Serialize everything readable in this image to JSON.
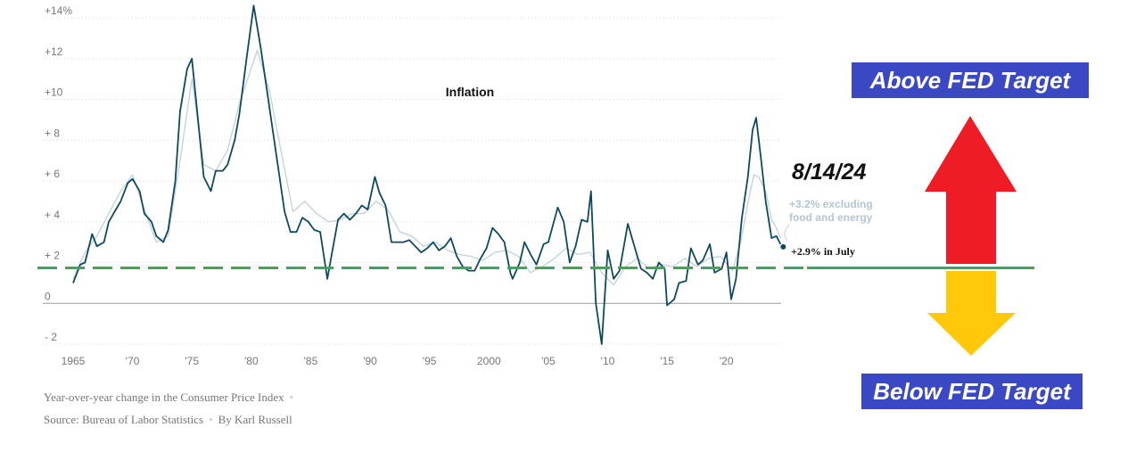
{
  "chart_data": {
    "type": "line",
    "title": "Inflation",
    "y_tick_labels": [
      "+14%",
      "+12",
      "+10",
      "+ 8",
      "+ 6",
      "+ 4",
      "+ 2",
      "0",
      "- 2"
    ],
    "y_tick_values": [
      14,
      12,
      10,
      8,
      6,
      4,
      2,
      0,
      -2
    ],
    "x_tick_labels": [
      "1965",
      "'70",
      "'75",
      "'80",
      "'85",
      "'90",
      "'95",
      "2000",
      "'05",
      "'10",
      "'15",
      "'20"
    ],
    "x_tick_values": [
      1965,
      1970,
      1975,
      1980,
      1985,
      1990,
      1995,
      2000,
      2005,
      2010,
      2015,
      2020
    ],
    "xlim": [
      1965,
      2024.6
    ],
    "ylim": [
      -2,
      14
    ],
    "grid": true,
    "series": [
      {
        "color": "#0e4a5f",
        "x": [
          1965.0,
          1965.6,
          1966.0,
          1966.6,
          1967.0,
          1967.6,
          1968.0,
          1968.6,
          1969.0,
          1969.6,
          1970.0,
          1970.6,
          1971.0,
          1971.6,
          1972.0,
          1972.6,
          1973.0,
          1973.6,
          1974.0,
          1974.6,
          1975.0,
          1975.6,
          1976.0,
          1976.6,
          1977.0,
          1977.6,
          1978.0,
          1978.6,
          1979.0,
          1979.6,
          1980.2,
          1980.8,
          1981.3,
          1981.8,
          1982.3,
          1982.8,
          1983.3,
          1983.8,
          1984.3,
          1984.8,
          1985.3,
          1985.8,
          1986.4,
          1986.8,
          1987.3,
          1987.8,
          1988.3,
          1988.8,
          1989.3,
          1989.8,
          1990.4,
          1990.8,
          1991.3,
          1991.8,
          1992.3,
          1992.8,
          1993.3,
          1993.8,
          1994.3,
          1994.8,
          1995.3,
          1995.8,
          1996.3,
          1996.8,
          1997.3,
          1997.8,
          1998.3,
          1998.8,
          1999.3,
          1999.8,
          2000.3,
          2000.8,
          2001.3,
          2001.8,
          2002.0,
          2002.6,
          2003.0,
          2003.6,
          2004.0,
          2004.6,
          2005.0,
          2005.8,
          2006.3,
          2006.8,
          2007.3,
          2007.8,
          2008.3,
          2008.6,
          2009.0,
          2009.5,
          2010.0,
          2010.5,
          2011.0,
          2011.7,
          2012.3,
          2012.8,
          2013.3,
          2013.8,
          2014.3,
          2014.8,
          2015.0,
          2015.6,
          2016.0,
          2016.6,
          2017.0,
          2017.6,
          2018.0,
          2018.6,
          2019.0,
          2019.6,
          2020.0,
          2020.4,
          2020.8,
          2021.3,
          2021.8,
          2022.2,
          2022.5,
          2022.9,
          2023.3,
          2023.8,
          2024.2,
          2024.55
        ],
        "y": [
          1.0,
          1.9,
          2.0,
          3.4,
          2.8,
          3.0,
          4.0,
          4.6,
          5.0,
          5.9,
          6.1,
          5.5,
          4.4,
          4.0,
          3.3,
          3.0,
          3.6,
          6.0,
          9.4,
          11.5,
          12.0,
          8.5,
          6.2,
          5.5,
          6.5,
          6.5,
          6.8,
          8.0,
          9.3,
          12.0,
          14.6,
          12.5,
          10.5,
          8.5,
          6.5,
          4.5,
          3.5,
          3.5,
          4.2,
          4.0,
          3.6,
          3.5,
          1.2,
          2.5,
          4.1,
          4.4,
          4.1,
          4.4,
          4.8,
          4.6,
          6.2,
          5.4,
          4.8,
          3.0,
          3.0,
          3.0,
          3.1,
          2.8,
          2.5,
          2.7,
          3.0,
          2.6,
          2.8,
          3.2,
          2.3,
          1.8,
          1.6,
          1.6,
          2.2,
          2.7,
          3.7,
          3.4,
          3.0,
          1.5,
          1.2,
          2.0,
          3.0,
          2.3,
          1.9,
          2.9,
          3.0,
          4.7,
          4.0,
          2.0,
          2.8,
          4.1,
          4.0,
          5.5,
          0.0,
          -2.0,
          2.6,
          1.2,
          1.6,
          3.9,
          2.7,
          1.7,
          1.5,
          1.2,
          2.0,
          1.7,
          -0.1,
          0.2,
          1.0,
          1.1,
          2.7,
          1.9,
          2.1,
          2.9,
          1.5,
          1.7,
          2.5,
          0.2,
          1.2,
          4.2,
          6.2,
          8.5,
          9.1,
          7.1,
          5.0,
          3.2,
          3.3,
          2.9
        ]
      },
      {
        "color": "#c5d3dd",
        "x": [
          1965.0,
          1966.0,
          1967.0,
          1968.0,
          1969.0,
          1970.0,
          1971.0,
          1972.0,
          1973.0,
          1974.0,
          1975.0,
          1976.0,
          1977.0,
          1978.0,
          1979.0,
          1980.5,
          1981.5,
          1982.5,
          1983.5,
          1984.5,
          1985.5,
          1986.5,
          1987.5,
          1988.5,
          1989.5,
          1990.5,
          1991.5,
          1992.5,
          1993.5,
          1994.5,
          1995.5,
          1996.5,
          1997.5,
          1998.5,
          1999.5,
          2000.5,
          2001.5,
          2002.5,
          2003.5,
          2004.5,
          2005.5,
          2006.5,
          2007.5,
          2008.5,
          2009.5,
          2010.5,
          2011.5,
          2012.5,
          2013.5,
          2014.5,
          2015.5,
          2016.5,
          2017.5,
          2018.5,
          2019.5,
          2020.5,
          2021.2,
          2021.8,
          2022.3,
          2022.7,
          2023.3,
          2023.8,
          2024.2,
          2024.55
        ],
        "y": [
          1.2,
          2.5,
          3.3,
          4.4,
          5.5,
          6.3,
          4.6,
          3.0,
          3.3,
          7.0,
          11.0,
          6.8,
          6.5,
          7.5,
          9.8,
          12.4,
          10.5,
          7.5,
          4.5,
          5.0,
          4.4,
          4.0,
          4.1,
          4.4,
          4.4,
          5.0,
          4.6,
          3.5,
          3.3,
          2.8,
          3.0,
          2.6,
          2.4,
          2.3,
          2.1,
          2.5,
          2.6,
          2.3,
          1.5,
          1.8,
          2.2,
          2.7,
          2.4,
          2.5,
          1.5,
          0.9,
          1.8,
          2.2,
          1.7,
          1.9,
          1.8,
          2.2,
          1.8,
          2.2,
          2.3,
          1.6,
          3.0,
          4.9,
          6.3,
          6.2,
          5.5,
          4.1,
          3.7,
          3.2
        ]
      }
    ],
    "annotations": {
      "date": "8/14/24",
      "core_line1": "+3.2% excluding",
      "core_line2": "food and energy",
      "headline": "+2.9% in July"
    },
    "fed_target_value": 2
  },
  "footer": {
    "caption": "Year-over-year change in the Consumer Price Index",
    "source": "Source: Bureau of Labor Statistics",
    "byline": "By Karl Russell",
    "dot": "•"
  },
  "fed_labels": {
    "above": "Above FED Target",
    "below": "Below FED Target"
  },
  "colors": {
    "cpi_line": "#0e4a5f",
    "core_line": "#c5d3dd",
    "target_line": "#3aa856",
    "up_arrow": "#ee1c25",
    "down_arrow": "#ffc80a",
    "label_box": "#3a48c4"
  }
}
